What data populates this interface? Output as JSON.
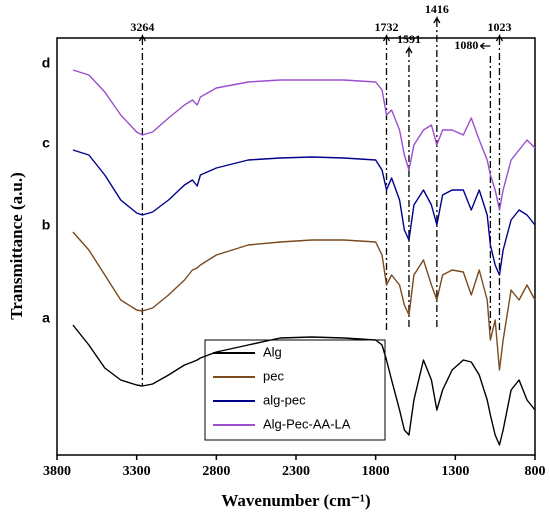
{
  "chart_data": {
    "type": "line",
    "xlabel": "Wavenumber (cm⁻¹)",
    "ylabel": "Transmittance (a.u.)",
    "x": [
      3700,
      3600,
      3500,
      3400,
      3300,
      3264,
      3200,
      3100,
      3000,
      2950,
      2920,
      2900,
      2800,
      2600,
      2400,
      2200,
      2000,
      1800,
      1760,
      1732,
      1700,
      1650,
      1620,
      1591,
      1560,
      1500,
      1450,
      1416,
      1380,
      1320,
      1250,
      1200,
      1150,
      1100,
      1080,
      1050,
      1023,
      1000,
      950,
      900,
      850,
      800
    ],
    "series": [
      {
        "name": "Alg",
        "color": "#000000",
        "values": [
          130,
          110,
          87,
          75,
          70,
          69,
          71,
          80,
          90,
          93,
          95,
          97,
          103,
          110,
          117,
          118,
          117,
          115,
          110,
          95,
          75,
          45,
          25,
          20,
          55,
          95,
          75,
          45,
          65,
          85,
          95,
          93,
          80,
          55,
          40,
          20,
          10,
          25,
          65,
          75,
          55,
          45
        ]
      },
      {
        "name": "pec",
        "color": "#7b4a1e",
        "values": [
          223,
          205,
          180,
          155,
          145,
          144,
          147,
          160,
          175,
          185,
          187,
          190,
          200,
          210,
          213,
          215,
          215,
          213,
          200,
          170,
          180,
          170,
          150,
          140,
          180,
          195,
          170,
          155,
          180,
          185,
          183,
          160,
          185,
          155,
          115,
          135,
          85,
          115,
          165,
          155,
          170,
          155
        ]
      },
      {
        "name": "alg-pec",
        "color": "#00008b",
        "values": [
          305,
          300,
          280,
          255,
          242,
          240,
          243,
          255,
          270,
          275,
          269,
          280,
          287,
          295,
          297,
          298,
          297,
          295,
          285,
          265,
          277,
          255,
          225,
          215,
          250,
          265,
          250,
          230,
          260,
          265,
          265,
          245,
          265,
          240,
          210,
          190,
          180,
          205,
          235,
          245,
          240,
          230
        ]
      },
      {
        "name": "Alg-Pec-AA-LA",
        "color": "#9b4fd0",
        "values": [
          385,
          380,
          363,
          340,
          323,
          320,
          323,
          337,
          350,
          355,
          350,
          358,
          367,
          373,
          375,
          375,
          375,
          373,
          365,
          340,
          345,
          325,
          300,
          285,
          310,
          325,
          330,
          310,
          325,
          325,
          320,
          337,
          315,
          295,
          280,
          265,
          245,
          265,
          295,
          305,
          315,
          307
        ]
      }
    ],
    "curve_labels": [
      "a",
      "b",
      "c",
      "d"
    ],
    "peaks": [
      3264,
      1732,
      1591,
      1416,
      1080,
      1023
    ],
    "xlim": [
      3800,
      800
    ],
    "xticks": [
      3800,
      3300,
      2800,
      2300,
      1800,
      1300,
      800
    ],
    "ylim": [
      0,
      417
    ],
    "legend": "lower center"
  }
}
